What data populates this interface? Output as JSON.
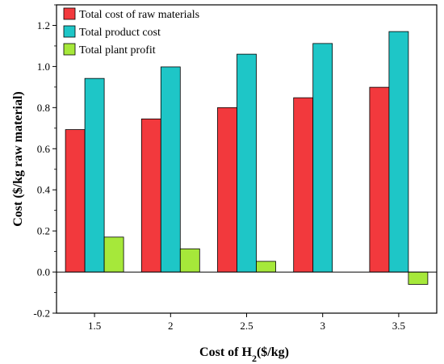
{
  "chart_data": {
    "type": "bar",
    "categories": [
      "1.5",
      "2",
      "2.5",
      "3",
      "3.5"
    ],
    "series": [
      {
        "name": "Total cost of raw materials",
        "values": [
          0.693,
          0.745,
          0.8,
          0.848,
          0.899
        ],
        "color": "#f2393d"
      },
      {
        "name": "Total product cost",
        "values": [
          0.942,
          0.998,
          1.06,
          1.112,
          1.17
        ],
        "color": "#1ec6c7"
      },
      {
        "name": "Total plant profit",
        "values": [
          0.17,
          0.113,
          0.052,
          0.0,
          -0.06
        ],
        "color": "#a6e83a"
      }
    ],
    "ylim": [
      -0.2,
      1.3
    ],
    "yticks": [
      "-0.2",
      "0.0",
      "0.2",
      "0.4",
      "0.6",
      "0.8",
      "1.0",
      "1.2"
    ],
    "ylabel": "Cost ($/kg raw material)",
    "xlabel": {
      "prefix": "Cost of H",
      "subscript": "2",
      "suffix": "($/kg)"
    },
    "legend_position": "top-left",
    "grid": false
  }
}
